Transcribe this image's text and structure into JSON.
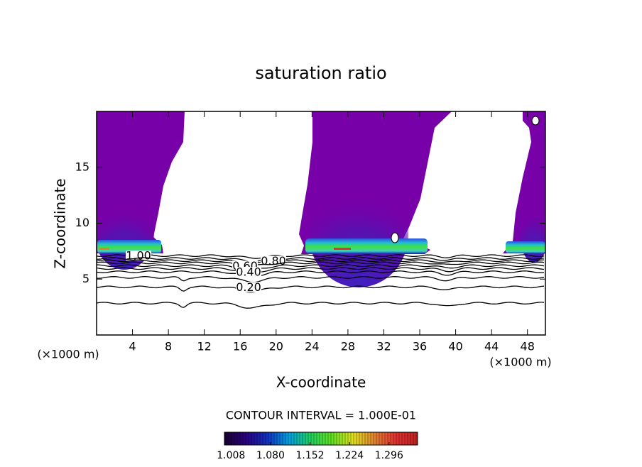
{
  "chart_data": {
    "type": "contour",
    "title": "saturation ratio",
    "x_label": "X-coordinate",
    "y_label": "Z-coordinate",
    "x_unit_left": "(×1000 m)",
    "x_unit_right": "(×1000 m)",
    "xlim": [
      0,
      50
    ],
    "ylim": [
      0,
      20
    ],
    "xticks": [
      4,
      8,
      12,
      16,
      20,
      24,
      28,
      32,
      36,
      40,
      44,
      48
    ],
    "yticks": [
      5,
      10,
      15
    ],
    "contour_interval": "CONTOUR INTERVAL = 1.000E-01",
    "line_color": "#000000",
    "fill_color": "#7800a8",
    "contours": [
      {
        "level": 1,
        "label": "1.00",
        "z": 7.1
      },
      {
        "level": 0.9,
        "z": 6.85
      },
      {
        "level": 0.8,
        "label": "0.80",
        "z": 6.65
      },
      {
        "level": 0.7,
        "z": 6.45
      },
      {
        "level": 0.6,
        "label": "0.60",
        "z": 6.2
      },
      {
        "level": 0.5,
        "z": 5.95
      },
      {
        "level": 0.4,
        "label": "0.40",
        "z": 5.65
      },
      {
        "level": 0.3,
        "z": 5.15
      },
      {
        "level": 0.2,
        "label": "0.20",
        "z": 4.3
      },
      {
        "level": 0.1,
        "z": 2.85
      }
    ],
    "colorbar": {
      "lim": [
        0.996,
        1.348
      ],
      "ticks": [
        1.008,
        {
          "value": 1.08,
          "label": "1.080"
        },
        1.152,
        1.224,
        1.296
      ],
      "colors": [
        "#1a0030",
        "#2a0080",
        "#1030c0",
        "#00a0e0",
        "#20d060",
        "#60e020",
        "#e0e020",
        "#e08030",
        "#e03030",
        "#c02020"
      ]
    }
  }
}
